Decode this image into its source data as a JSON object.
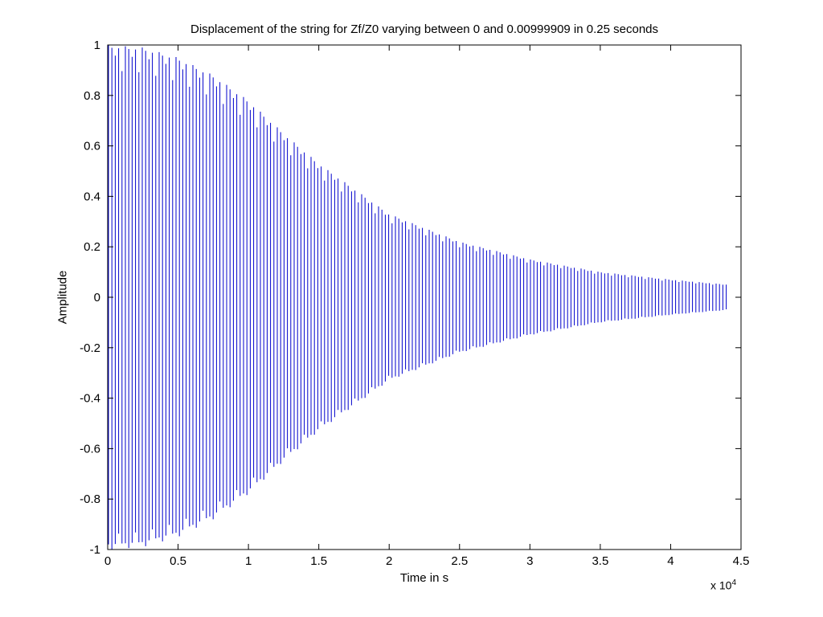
{
  "chart_data": {
    "type": "line",
    "title": "Displacement of the string for Zf/Z0 varying between 0 and 0.00999909 in 0.25 seconds",
    "xlabel": "Time in s",
    "ylabel": "Amplitude",
    "x_multiplier": {
      "base": "x 10",
      "exponent": "4"
    },
    "xlim": [
      0,
      4.5
    ],
    "ylim": [
      -1,
      1
    ],
    "x_ticks": [
      "0",
      "0.5",
      "1",
      "1.5",
      "2",
      "2.5",
      "3",
      "3.5",
      "4",
      "4.5"
    ],
    "y_ticks": [
      "-1",
      "-0.8",
      "-0.6",
      "-0.4",
      "-0.2",
      "0",
      "0.2",
      "0.4",
      "0.6",
      "0.8",
      "1"
    ],
    "grid": false,
    "series": [
      {
        "color": "#0000cc",
        "x_end": 4.41,
        "envelope": [
          {
            "x": 0.0,
            "amp": 1.0
          },
          {
            "x": 0.25,
            "amp": 0.99
          },
          {
            "x": 0.5,
            "amp": 0.95
          },
          {
            "x": 0.75,
            "amp": 0.88
          },
          {
            "x": 1.0,
            "amp": 0.78
          },
          {
            "x": 1.25,
            "amp": 0.65
          },
          {
            "x": 1.5,
            "amp": 0.53
          },
          {
            "x": 1.75,
            "amp": 0.43
          },
          {
            "x": 2.0,
            "amp": 0.33
          },
          {
            "x": 2.5,
            "amp": 0.22
          },
          {
            "x": 3.0,
            "amp": 0.15
          },
          {
            "x": 3.5,
            "amp": 0.1
          },
          {
            "x": 4.0,
            "amp": 0.07
          },
          {
            "x": 4.41,
            "amp": 0.05
          }
        ]
      }
    ]
  }
}
